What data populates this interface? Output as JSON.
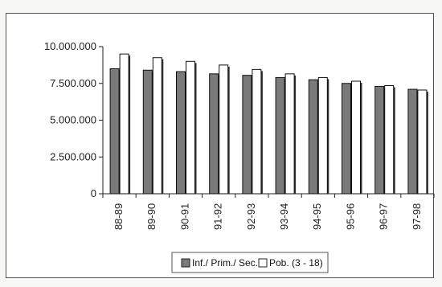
{
  "chart_data": {
    "type": "bar",
    "categories": [
      "88-89",
      "89-90",
      "90-91",
      "91-92",
      "92-93",
      "93-94",
      "94-95",
      "95-96",
      "96-97",
      "97-98"
    ],
    "series": [
      {
        "name": "Inf./ Prim./ Sec.",
        "values": [
          8500000,
          8400000,
          8300000,
          8150000,
          8050000,
          7900000,
          7750000,
          7500000,
          7300000,
          7100000
        ],
        "color": "#7a7a7a"
      },
      {
        "name": "Pob. (3 - 18)",
        "values": [
          9500000,
          9250000,
          9000000,
          8750000,
          8450000,
          8150000,
          7900000,
          7650000,
          7350000,
          7050000
        ],
        "color": "#ffffff"
      }
    ],
    "ylim": [
      0,
      10000000
    ],
    "yticks": [
      "0",
      "2.500.000",
      "5.000.000",
      "7.500.000",
      "10.000.000"
    ],
    "ytick_values": [
      0,
      2500000,
      5000000,
      7500000,
      10000000
    ],
    "legend_position": "bottom",
    "grid": false
  }
}
